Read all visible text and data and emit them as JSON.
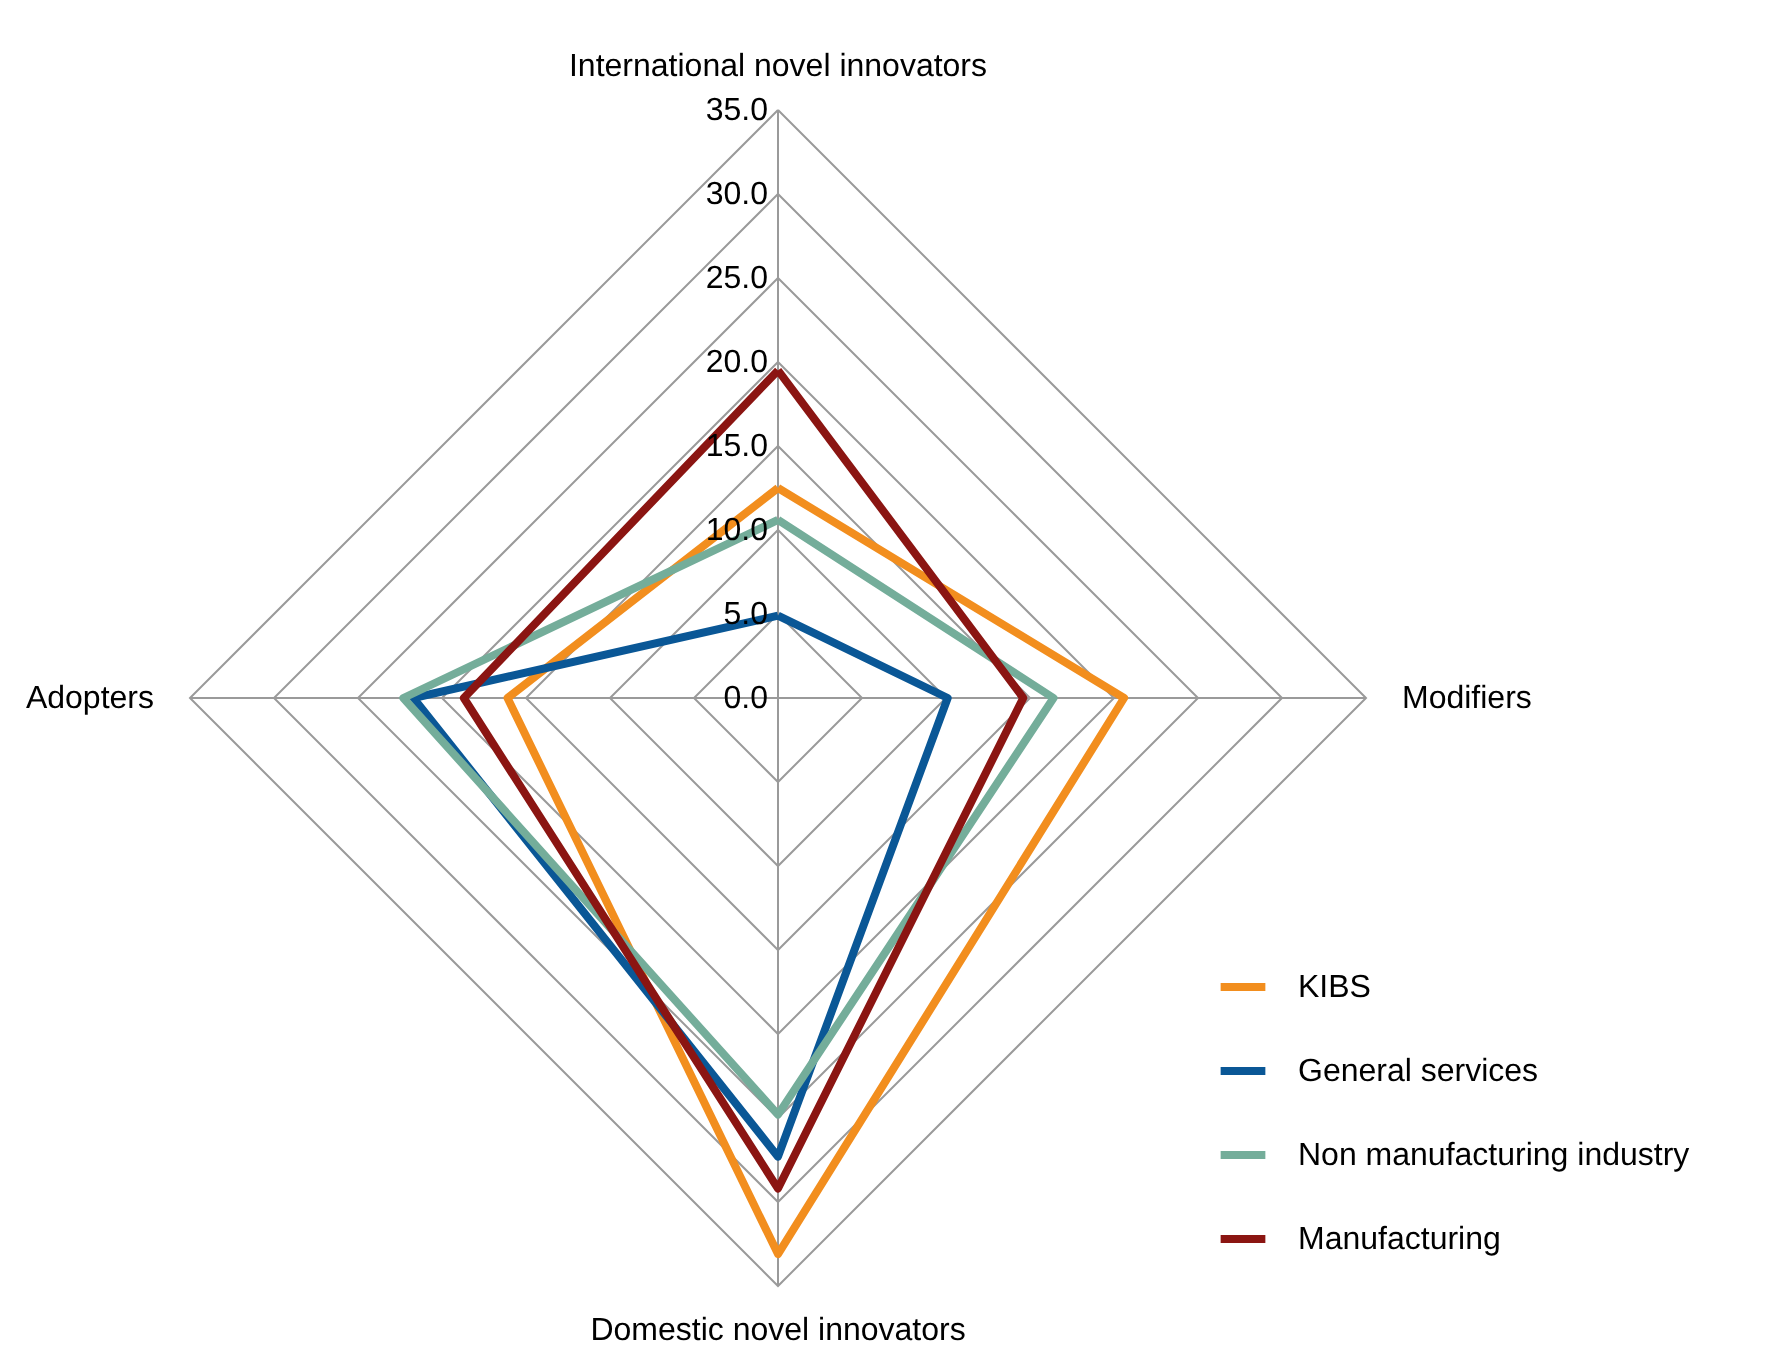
{
  "chart_data": {
    "type": "radar",
    "categories": [
      "International novel innovators",
      "Modifiers",
      "Domestic novel innovators",
      "Adopters"
    ],
    "series": [
      {
        "name": "KIBS",
        "color": "#f28e1e",
        "values": [
          12.5,
          20.6,
          33.1,
          16.1
        ]
      },
      {
        "name": "General services",
        "color": "#0a5796",
        "values": [
          4.9,
          10.1,
          27.3,
          21.7
        ]
      },
      {
        "name": "Non manufacturing industry",
        "color": "#74ad9a",
        "values": [
          10.6,
          16.4,
          24.8,
          22.3
        ]
      },
      {
        "name": "Manufacturing",
        "color": "#8b1512",
        "values": [
          19.5,
          14.6,
          29.2,
          18.7
        ]
      }
    ],
    "ylim": [
      0,
      35
    ],
    "yticks": [
      {
        "value": 0,
        "label": "0.0"
      },
      {
        "value": 5,
        "label": "5.0"
      },
      {
        "value": 10,
        "label": "10.0"
      },
      {
        "value": 15,
        "label": "15.0"
      },
      {
        "value": 20,
        "label": "20.0"
      },
      {
        "value": 25,
        "label": "25.0"
      },
      {
        "value": 30,
        "label": "30.0"
      },
      {
        "value": 35,
        "label": "35.0"
      }
    ],
    "grid": true,
    "legend": "bottom right",
    "line_style": "solid",
    "marker": "none"
  }
}
